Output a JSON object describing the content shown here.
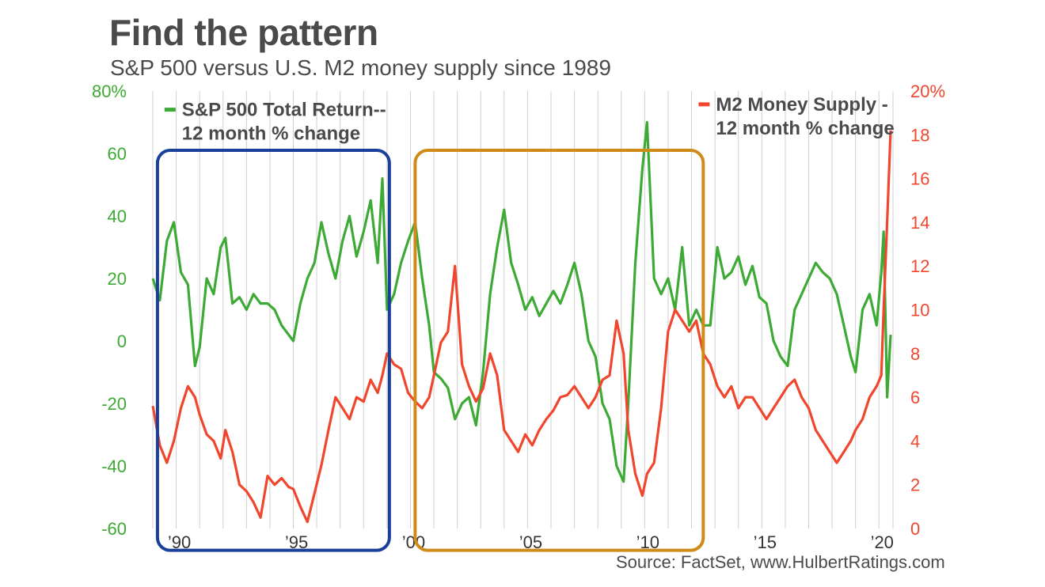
{
  "title": "Find the pattern",
  "subtitle": "S&P 500 versus U.S. M2 money supply since 1989",
  "source": "Source: FactSet, www.HulbertRatings.com",
  "chart_data": {
    "type": "line",
    "x_range": [
      1989.0,
      2020.6
    ],
    "x_ticks": [
      {
        "value": 1990,
        "label": "’90"
      },
      {
        "value": 1995,
        "label": "’95"
      },
      {
        "value": 2000,
        "label": "’00"
      },
      {
        "value": 2005,
        "label": "’05"
      },
      {
        "value": 2010,
        "label": "’10"
      },
      {
        "value": 2015,
        "label": "’15"
      },
      {
        "value": 2020,
        "label": "’20"
      }
    ],
    "y_left": {
      "range": [
        -60,
        80
      ],
      "ticks": [
        -60,
        -40,
        -20,
        0,
        20,
        40,
        60,
        80
      ],
      "top_label": "80%",
      "color": "#3daa35"
    },
    "y_right": {
      "range": [
        0,
        20
      ],
      "ticks": [
        0,
        2,
        4,
        6,
        8,
        10,
        12,
        14,
        16,
        18,
        20
      ],
      "top_label": "20%",
      "color": "#f0462d"
    },
    "grid": "vertical-yearly",
    "series": [
      {
        "name": "S&P 500 Total Return-- 12 month % change",
        "legend_lines": [
          "S&P 500 Total Return--",
          "12 month % change"
        ],
        "axis": "left",
        "color": "#3daa35",
        "x": [
          1989.0,
          1989.3,
          1989.6,
          1989.9,
          1990.2,
          1990.5,
          1990.8,
          1991.0,
          1991.3,
          1991.6,
          1991.9,
          1992.1,
          1992.4,
          1992.7,
          1993.0,
          1993.3,
          1993.6,
          1993.9,
          1994.2,
          1994.5,
          1994.8,
          1995.0,
          1995.3,
          1995.6,
          1995.9,
          1996.2,
          1996.5,
          1996.8,
          1997.1,
          1997.4,
          1997.7,
          1998.0,
          1998.3,
          1998.6,
          1998.8,
          1999.0,
          1999.3,
          1999.6,
          1999.9,
          2000.2,
          2000.5,
          2000.8,
          2001.0,
          2001.3,
          2001.6,
          2001.9,
          2002.2,
          2002.5,
          2002.8,
          2003.1,
          2003.4,
          2003.7,
          2004.0,
          2004.3,
          2004.6,
          2004.9,
          2005.2,
          2005.5,
          2005.8,
          2006.1,
          2006.4,
          2006.7,
          2007.0,
          2007.3,
          2007.6,
          2007.9,
          2008.2,
          2008.5,
          2008.8,
          2009.1,
          2009.3,
          2009.6,
          2009.9,
          2010.1,
          2010.4,
          2010.7,
          2011.0,
          2011.3,
          2011.6,
          2011.9,
          2012.2,
          2012.5,
          2012.8,
          2013.1,
          2013.4,
          2013.7,
          2014.0,
          2014.3,
          2014.6,
          2014.9,
          2015.2,
          2015.5,
          2015.8,
          2016.1,
          2016.4,
          2016.7,
          2017.0,
          2017.3,
          2017.6,
          2017.9,
          2018.2,
          2018.5,
          2018.8,
          2019.0,
          2019.3,
          2019.6,
          2019.9,
          2020.1,
          2020.2,
          2020.35,
          2020.5
        ],
        "y": [
          20,
          13,
          32,
          38,
          22,
          18,
          -8,
          -2,
          20,
          15,
          30,
          33,
          12,
          14,
          10,
          15,
          12,
          12,
          10,
          5,
          2,
          0,
          12,
          20,
          25,
          38,
          28,
          20,
          32,
          40,
          27,
          35,
          45,
          25,
          52,
          10,
          15,
          25,
          32,
          38,
          20,
          5,
          -10,
          -12,
          -15,
          -25,
          -20,
          -18,
          -27,
          -10,
          15,
          30,
          42,
          25,
          18,
          10,
          14,
          8,
          12,
          16,
          12,
          18,
          25,
          15,
          0,
          -5,
          -20,
          -25,
          -40,
          -45,
          -20,
          25,
          55,
          70,
          20,
          15,
          20,
          10,
          30,
          5,
          10,
          5,
          5,
          30,
          20,
          22,
          27,
          18,
          24,
          14,
          12,
          0,
          -5,
          -8,
          10,
          15,
          20,
          25,
          22,
          20,
          15,
          5,
          -5,
          -10,
          10,
          15,
          5,
          22,
          35,
          -18,
          2
        ],
        "label_x": 1989.5,
        "label_y": 72
      },
      {
        "name": "M2 Money Supply - 12 month % change",
        "legend_lines": [
          "M2 Money Supply -",
          "12 month % change"
        ],
        "axis": "right",
        "color": "#f0462d",
        "x": [
          1989.0,
          1989.3,
          1989.6,
          1989.9,
          1990.2,
          1990.5,
          1990.8,
          1991.0,
          1991.3,
          1991.6,
          1991.9,
          1992.1,
          1992.4,
          1992.7,
          1993.0,
          1993.3,
          1993.6,
          1993.9,
          1994.2,
          1994.5,
          1994.8,
          1995.0,
          1995.3,
          1995.6,
          1995.9,
          1996.2,
          1996.5,
          1996.8,
          1997.1,
          1997.4,
          1997.7,
          1998.0,
          1998.3,
          1998.6,
          1998.8,
          1999.0,
          1999.3,
          1999.6,
          1999.9,
          2000.2,
          2000.5,
          2000.8,
          2001.0,
          2001.3,
          2001.6,
          2001.9,
          2002.2,
          2002.5,
          2002.8,
          2003.1,
          2003.4,
          2003.7,
          2004.0,
          2004.3,
          2004.6,
          2004.9,
          2005.2,
          2005.5,
          2005.8,
          2006.1,
          2006.4,
          2006.7,
          2007.0,
          2007.3,
          2007.6,
          2007.9,
          2008.2,
          2008.5,
          2008.8,
          2009.1,
          2009.3,
          2009.6,
          2009.9,
          2010.1,
          2010.4,
          2010.7,
          2011.0,
          2011.3,
          2011.6,
          2011.9,
          2012.2,
          2012.5,
          2012.8,
          2013.1,
          2013.4,
          2013.7,
          2014.0,
          2014.3,
          2014.6,
          2014.9,
          2015.2,
          2015.5,
          2015.8,
          2016.1,
          2016.4,
          2016.7,
          2017.0,
          2017.3,
          2017.6,
          2017.9,
          2018.2,
          2018.5,
          2018.8,
          2019.0,
          2019.3,
          2019.6,
          2019.9,
          2020.1,
          2020.2,
          2020.35,
          2020.5
        ],
        "y": [
          5.6,
          3.8,
          3.0,
          4.0,
          5.5,
          6.5,
          6.0,
          5.2,
          4.3,
          4.0,
          3.2,
          4.5,
          3.5,
          2.0,
          1.7,
          1.2,
          0.5,
          2.4,
          2.0,
          2.3,
          1.9,
          1.8,
          1.0,
          0.3,
          1.6,
          2.9,
          4.5,
          6.0,
          5.5,
          5.0,
          6.0,
          5.8,
          6.8,
          6.2,
          7.0,
          8.0,
          7.5,
          7.3,
          6.2,
          5.8,
          5.5,
          6.0,
          7.0,
          8.5,
          9.0,
          12.0,
          7.5,
          6.5,
          5.8,
          6.4,
          8.0,
          7.0,
          4.5,
          4.0,
          3.5,
          4.3,
          3.8,
          4.5,
          5.0,
          5.4,
          6.0,
          6.1,
          6.5,
          6.0,
          5.5,
          6.0,
          6.8,
          7.0,
          9.5,
          8.0,
          4.5,
          2.5,
          1.5,
          2.5,
          3.0,
          5.5,
          9.0,
          10.0,
          9.5,
          9.0,
          9.5,
          8.0,
          7.5,
          6.5,
          6.0,
          6.5,
          5.5,
          6.0,
          6.0,
          5.5,
          5.0,
          5.5,
          6.0,
          6.5,
          6.8,
          6.0,
          5.5,
          4.5,
          4.0,
          3.5,
          3.0,
          3.5,
          4.0,
          4.5,
          5.0,
          6.0,
          6.5,
          7.0,
          10.0,
          14.0,
          18.2
        ],
        "label_x": 2012.3,
        "label_y": 19.1
      }
    ],
    "highlight_boxes": [
      {
        "name": "blue-highlight-box",
        "x_range": [
          1989.2,
          1999.1
        ],
        "y_left_range": [
          -67,
          61
        ],
        "color": "#1a3f9b"
      },
      {
        "name": "orange-highlight-box",
        "x_range": [
          2000.2,
          2012.5
        ],
        "y_left_range": [
          -67,
          61
        ],
        "color": "#d08a18"
      }
    ]
  }
}
